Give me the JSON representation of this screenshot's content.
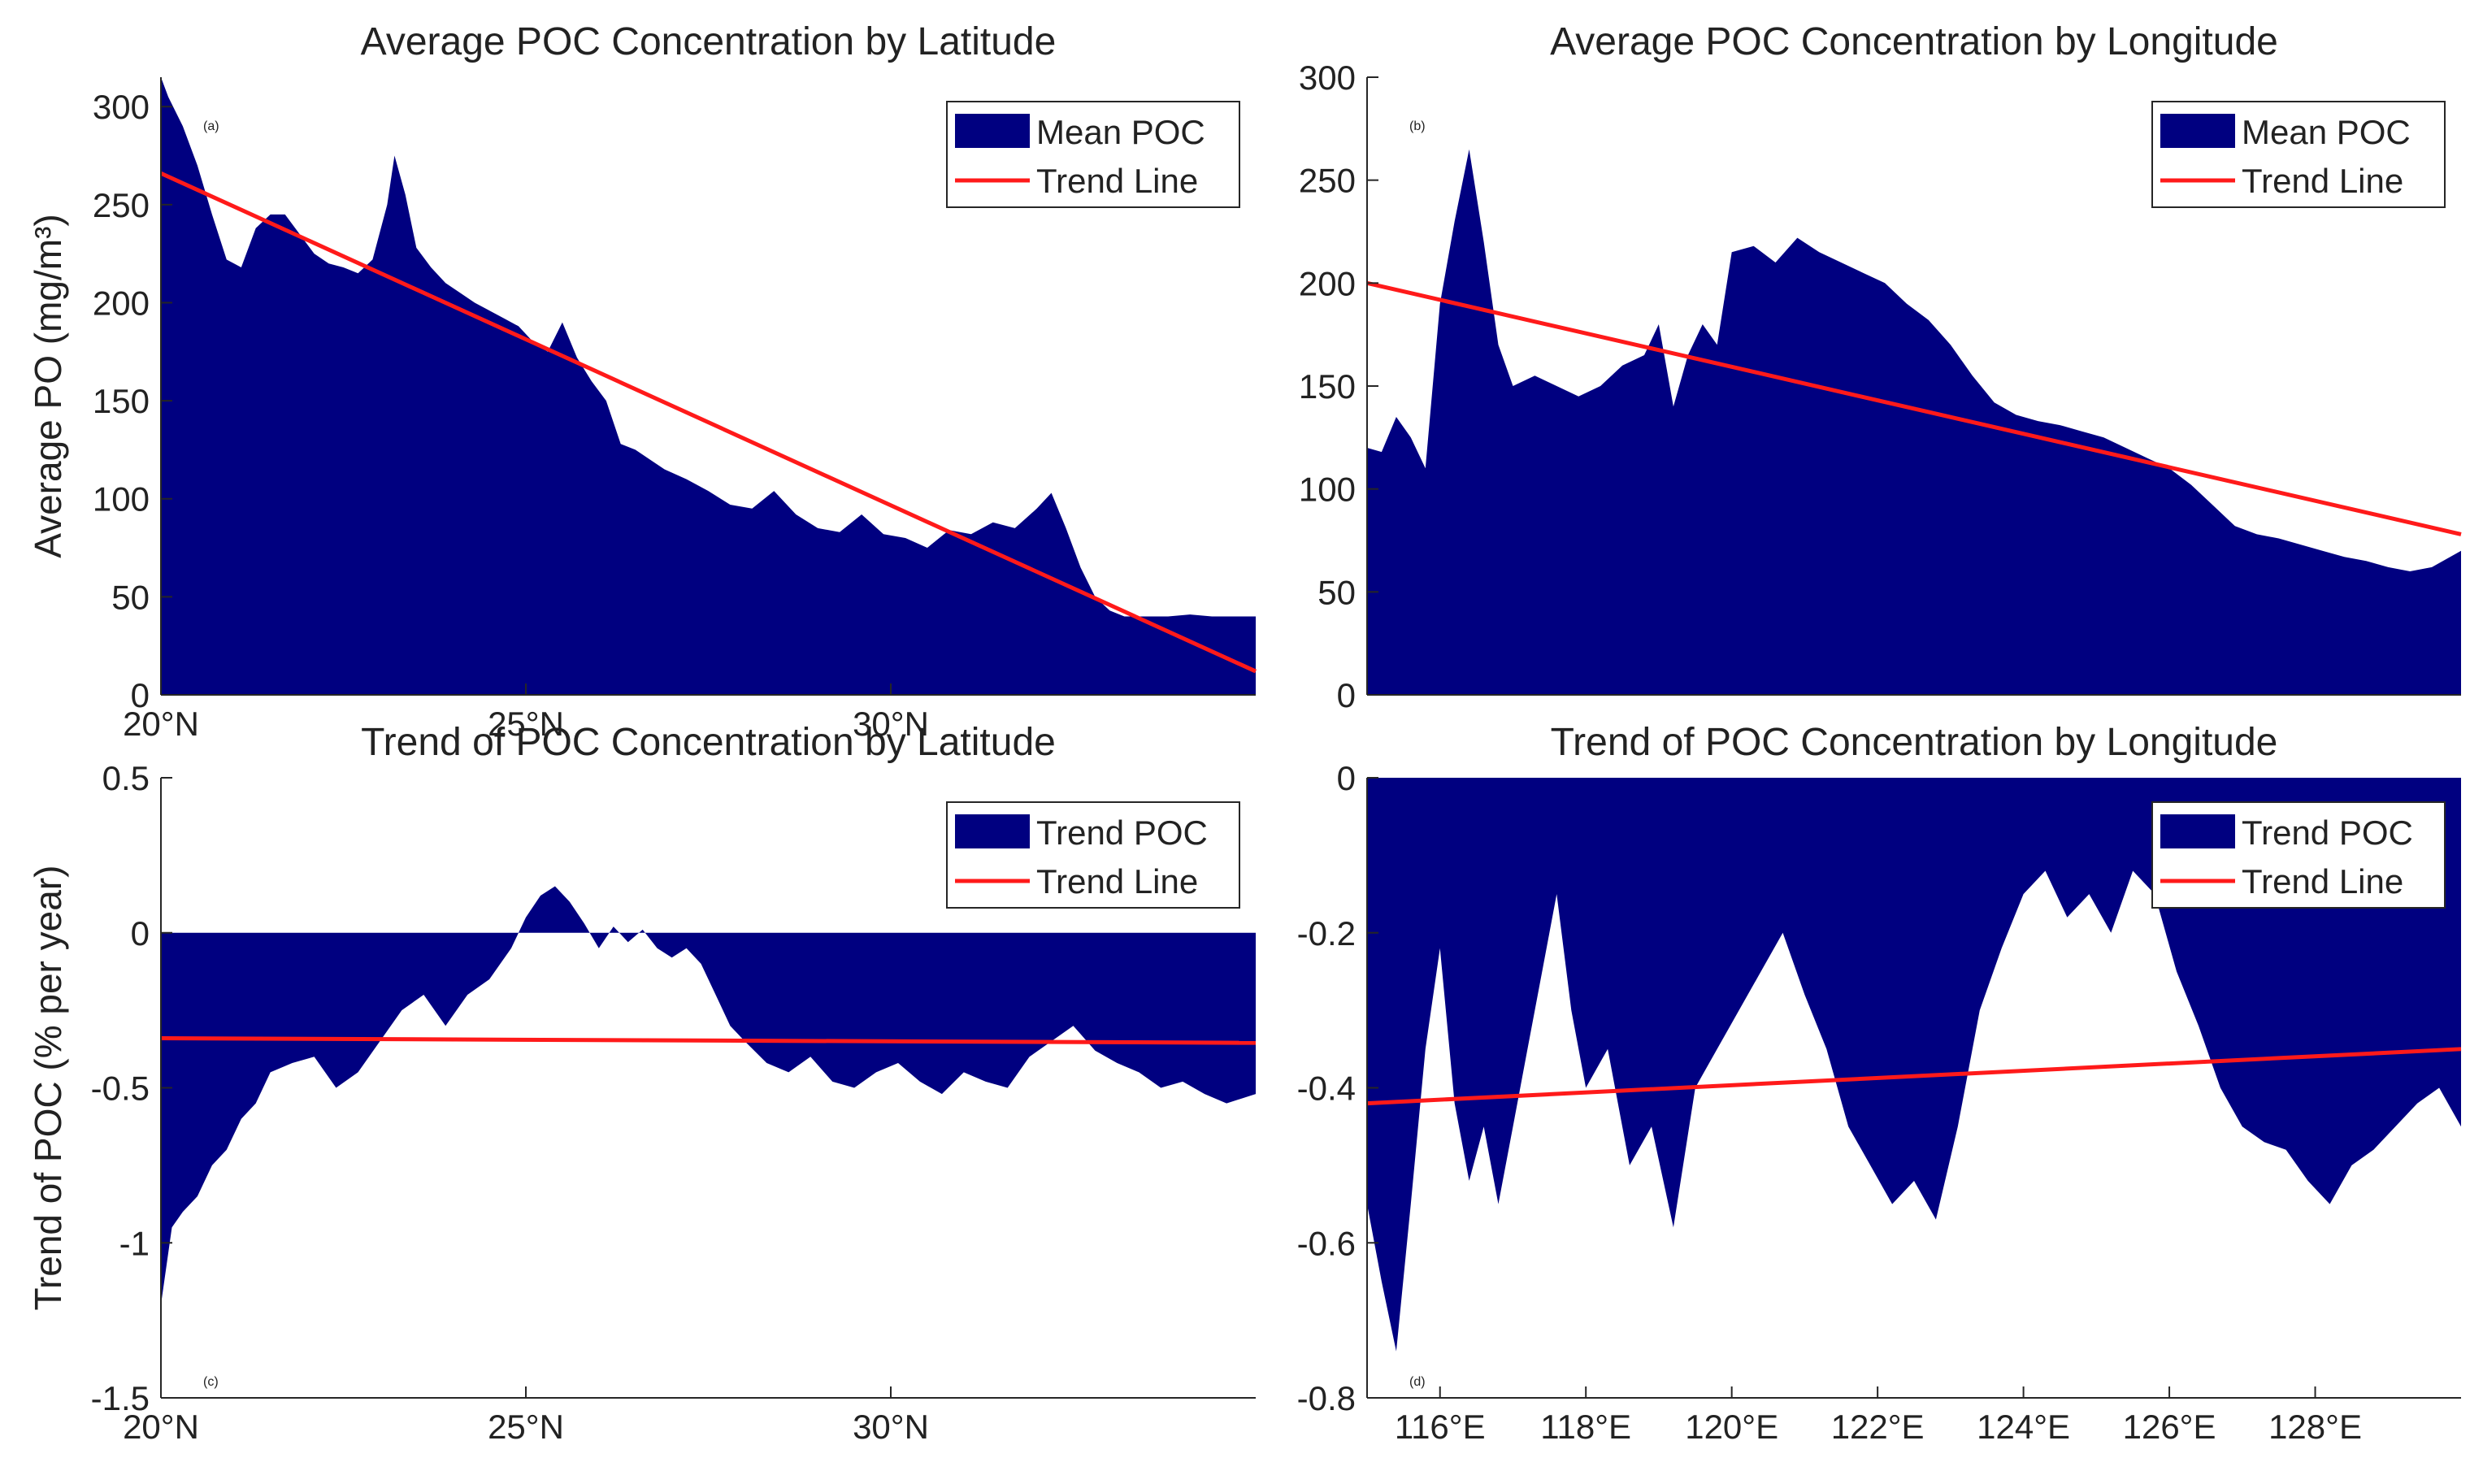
{
  "colors": {
    "area": "#000080",
    "trend": "#ff1a1a",
    "axis": "#262626"
  },
  "chart_data": [
    {
      "id": "a",
      "type": "area",
      "panel_label": "(a)",
      "title": "Average POC Concentration by Latitude",
      "xlabel": "",
      "ylabel": "Average PO (mg/m³)",
      "xlim": [
        20,
        35
      ],
      "ylim": [
        0,
        315
      ],
      "xticks": [
        {
          "value": 20,
          "label": "20°N"
        },
        {
          "value": 25,
          "label": "25°N"
        },
        {
          "value": 30,
          "label": "30°N"
        }
      ],
      "yticks": [
        {
          "value": 0,
          "label": "0"
        },
        {
          "value": 50,
          "label": "50"
        },
        {
          "value": 100,
          "label": "100"
        },
        {
          "value": 150,
          "label": "150"
        },
        {
          "value": 200,
          "label": "200"
        },
        {
          "value": 250,
          "label": "250"
        },
        {
          "value": 300,
          "label": "300"
        }
      ],
      "legend": {
        "position": "top-right",
        "area_label": "Mean POC",
        "line_label": "Trend Line"
      },
      "series": [
        {
          "name": "Mean POC",
          "x": [
            20,
            20.1,
            20.3,
            20.5,
            20.7,
            20.9,
            21.1,
            21.3,
            21.5,
            21.7,
            21.9,
            22.1,
            22.3,
            22.5,
            22.7,
            22.9,
            23.1,
            23.2,
            23.35,
            23.5,
            23.7,
            23.9,
            24.1,
            24.3,
            24.5,
            24.7,
            24.9,
            25.1,
            25.3,
            25.5,
            25.7,
            25.9,
            26.1,
            26.3,
            26.5,
            26.7,
            26.9,
            27.2,
            27.5,
            27.8,
            28.1,
            28.4,
            28.7,
            29.0,
            29.3,
            29.6,
            29.9,
            30.2,
            30.5,
            30.8,
            31.1,
            31.4,
            31.7,
            32.0,
            32.2,
            32.4,
            32.6,
            32.8,
            33.0,
            33.2,
            33.5,
            33.8,
            34.1,
            34.4,
            34.7,
            35
          ],
          "values": [
            315,
            305,
            290,
            270,
            245,
            222,
            218,
            238,
            245,
            245,
            235,
            225,
            220,
            218,
            215,
            222,
            250,
            275,
            255,
            228,
            218,
            210,
            205,
            200,
            196,
            192,
            188,
            180,
            175,
            190,
            172,
            160,
            150,
            128,
            125,
            120,
            115,
            110,
            104,
            97,
            95,
            104,
            92,
            85,
            83,
            92,
            82,
            80,
            75,
            84,
            82,
            88,
            85,
            95,
            103,
            85,
            65,
            50,
            43,
            40,
            40,
            40,
            41,
            40,
            40,
            40
          ]
        },
        {
          "name": "Trend Line",
          "x": [
            20,
            35
          ],
          "values": [
            266,
            12
          ]
        }
      ]
    },
    {
      "id": "b",
      "type": "area",
      "panel_label": "(b)",
      "title": "Average POC Concentration by Longitude",
      "xlabel": "",
      "ylabel": "",
      "xlim": [
        115,
        130
      ],
      "ylim": [
        0,
        300
      ],
      "xticks": [],
      "yticks": [
        {
          "value": 0,
          "label": "0"
        },
        {
          "value": 50,
          "label": "50"
        },
        {
          "value": 100,
          "label": "100"
        },
        {
          "value": 150,
          "label": "150"
        },
        {
          "value": 200,
          "label": "200"
        },
        {
          "value": 250,
          "label": "250"
        },
        {
          "value": 300,
          "label": "300"
        }
      ],
      "legend": {
        "position": "top-right",
        "area_label": "Mean POC",
        "line_label": "Trend Line"
      },
      "series": [
        {
          "name": "Mean POC",
          "x": [
            115,
            115.2,
            115.4,
            115.6,
            115.8,
            116.0,
            116.2,
            116.4,
            116.6,
            116.8,
            117.0,
            117.3,
            117.6,
            117.9,
            118.2,
            118.5,
            118.8,
            119.0,
            119.2,
            119.4,
            119.6,
            119.8,
            120.0,
            120.3,
            120.6,
            120.9,
            121.2,
            121.5,
            121.8,
            122.1,
            122.4,
            122.7,
            123.0,
            123.3,
            123.6,
            123.9,
            124.2,
            124.5,
            124.8,
            125.1,
            125.4,
            125.7,
            126.0,
            126.3,
            126.6,
            126.9,
            127.2,
            127.5,
            127.8,
            128.1,
            128.4,
            128.7,
            129.0,
            129.3,
            129.6,
            130
          ],
          "values": [
            120,
            118,
            135,
            125,
            110,
            190,
            230,
            265,
            220,
            170,
            150,
            155,
            150,
            145,
            150,
            160,
            165,
            180,
            140,
            165,
            180,
            170,
            215,
            218,
            210,
            222,
            215,
            210,
            205,
            200,
            190,
            182,
            170,
            155,
            142,
            136,
            133,
            131,
            128,
            125,
            120,
            115,
            110,
            102,
            92,
            82,
            78,
            76,
            73,
            70,
            67,
            65,
            62,
            60,
            62,
            70
          ]
        },
        {
          "name": "Trend Line",
          "x": [
            115,
            130
          ],
          "values": [
            200,
            78
          ]
        }
      ]
    },
    {
      "id": "c",
      "type": "area",
      "panel_label": "(c)",
      "title": "Trend of POC Concentration by Latitude",
      "xlabel": "",
      "ylabel": "Trend of POC (% per year)",
      "xlim": [
        20,
        35
      ],
      "ylim": [
        -1.5,
        0.5
      ],
      "xticks": [
        {
          "value": 20,
          "label": "20°N"
        },
        {
          "value": 25,
          "label": "25°N"
        },
        {
          "value": 30,
          "label": "30°N"
        }
      ],
      "yticks": [
        {
          "value": -1.5,
          "label": "-1.5"
        },
        {
          "value": -1,
          "label": "-1"
        },
        {
          "value": -0.5,
          "label": "-0.5"
        },
        {
          "value": 0,
          "label": "0"
        },
        {
          "value": 0.5,
          "label": "0.5"
        }
      ],
      "legend": {
        "position": "top-right",
        "area_label": "Trend POC",
        "line_label": "Trend Line"
      },
      "series": [
        {
          "name": "Trend POC",
          "x": [
            20,
            20.15,
            20.3,
            20.5,
            20.7,
            20.9,
            21.1,
            21.3,
            21.5,
            21.8,
            22.1,
            22.4,
            22.7,
            23.0,
            23.3,
            23.6,
            23.9,
            24.2,
            24.5,
            24.8,
            25.0,
            25.2,
            25.4,
            25.6,
            25.8,
            26.0,
            26.2,
            26.4,
            26.6,
            26.8,
            27.0,
            27.2,
            27.4,
            27.6,
            27.8,
            28.0,
            28.3,
            28.6,
            28.9,
            29.2,
            29.5,
            29.8,
            30.1,
            30.4,
            30.7,
            31.0,
            31.3,
            31.6,
            31.9,
            32.2,
            32.5,
            32.8,
            33.1,
            33.4,
            33.7,
            34.0,
            34.3,
            34.6,
            35
          ],
          "values": [
            -1.2,
            -0.95,
            -0.9,
            -0.85,
            -0.75,
            -0.7,
            -0.6,
            -0.55,
            -0.45,
            -0.42,
            -0.4,
            -0.5,
            -0.45,
            -0.35,
            -0.25,
            -0.2,
            -0.3,
            -0.2,
            -0.15,
            -0.05,
            0.05,
            0.12,
            0.15,
            0.1,
            0.03,
            -0.05,
            0.02,
            -0.03,
            0.01,
            -0.05,
            -0.08,
            -0.05,
            -0.1,
            -0.2,
            -0.3,
            -0.35,
            -0.42,
            -0.45,
            -0.4,
            -0.48,
            -0.5,
            -0.45,
            -0.42,
            -0.48,
            -0.52,
            -0.45,
            -0.48,
            -0.5,
            -0.4,
            -0.35,
            -0.3,
            -0.38,
            -0.42,
            -0.45,
            -0.5,
            -0.48,
            -0.52,
            -0.55,
            -0.52
          ]
        },
        {
          "name": "Trend Line",
          "x": [
            20,
            35
          ],
          "values": [
            -0.34,
            -0.355
          ]
        }
      ]
    },
    {
      "id": "d",
      "type": "area",
      "panel_label": "(d)",
      "title": "Trend of POC Concentration by Longitude",
      "xlabel": "",
      "ylabel": "",
      "xlim": [
        115,
        130
      ],
      "ylim": [
        -0.8,
        0
      ],
      "xticks": [
        {
          "value": 116,
          "label": "116°E"
        },
        {
          "value": 118,
          "label": "118°E"
        },
        {
          "value": 120,
          "label": "120°E"
        },
        {
          "value": 122,
          "label": "122°E"
        },
        {
          "value": 124,
          "label": "124°E"
        },
        {
          "value": 126,
          "label": "126°E"
        },
        {
          "value": 128,
          "label": "128°E"
        }
      ],
      "yticks": [
        {
          "value": -0.8,
          "label": "-0.8"
        },
        {
          "value": -0.6,
          "label": "-0.6"
        },
        {
          "value": -0.4,
          "label": "-0.4"
        },
        {
          "value": -0.2,
          "label": "-0.2"
        },
        {
          "value": 0,
          "label": "0"
        }
      ],
      "legend": {
        "position": "top-right",
        "area_label": "Trend POC",
        "line_label": "Trend Line"
      },
      "series": [
        {
          "name": "Trend POC",
          "x": [
            115,
            115.2,
            115.4,
            115.6,
            115.8,
            116.0,
            116.2,
            116.4,
            116.6,
            116.8,
            117.0,
            117.2,
            117.4,
            117.6,
            117.8,
            118.0,
            118.3,
            118.6,
            118.9,
            119.2,
            119.5,
            119.8,
            120.1,
            120.4,
            120.7,
            121.0,
            121.3,
            121.6,
            121.9,
            122.2,
            122.5,
            122.8,
            123.1,
            123.4,
            123.7,
            124.0,
            124.3,
            124.6,
            124.9,
            125.2,
            125.5,
            125.8,
            126.1,
            126.4,
            126.7,
            127.0,
            127.3,
            127.6,
            127.9,
            128.2,
            128.5,
            128.8,
            129.1,
            129.4,
            129.7,
            130
          ],
          "values": [
            -0.55,
            -0.65,
            -0.74,
            -0.55,
            -0.35,
            -0.22,
            -0.42,
            -0.52,
            -0.45,
            -0.55,
            -0.45,
            -0.35,
            -0.25,
            -0.15,
            -0.3,
            -0.4,
            -0.35,
            -0.5,
            -0.45,
            -0.58,
            -0.4,
            -0.35,
            -0.3,
            -0.25,
            -0.2,
            -0.28,
            -0.35,
            -0.45,
            -0.5,
            -0.55,
            -0.52,
            -0.57,
            -0.45,
            -0.3,
            -0.22,
            -0.15,
            -0.12,
            -0.18,
            -0.15,
            -0.2,
            -0.12,
            -0.15,
            -0.25,
            -0.32,
            -0.4,
            -0.45,
            -0.47,
            -0.48,
            -0.52,
            -0.55,
            -0.5,
            -0.48,
            -0.45,
            -0.42,
            -0.4,
            -0.45
          ]
        },
        {
          "name": "Trend Line",
          "x": [
            115,
            130
          ],
          "values": [
            -0.42,
            -0.35
          ]
        }
      ]
    }
  ]
}
